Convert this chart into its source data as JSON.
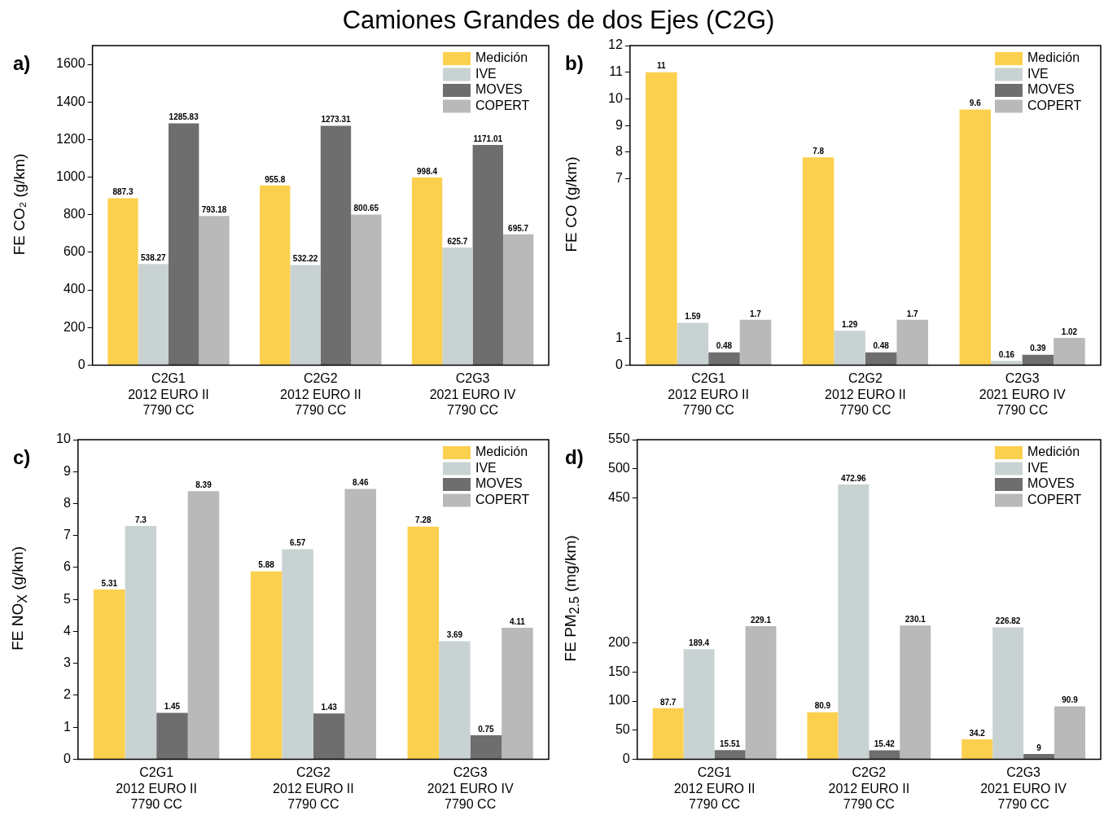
{
  "chart_data": [
    {
      "type": "bar",
      "title": "Camiones Grandes de dos Ejes (C2G)",
      "annotations": [
        "a)"
      ],
      "ylabel": "FE CO₂ (g/km)",
      "categories": [
        "C2G1\n2012 EURO II\n7790 CC",
        "C2G2\n2012 EURO II\n7790 CC",
        "C2G3\n2021 EURO IV\n7790 CC"
      ],
      "series": [
        {
          "name": "Medición",
          "color": "#fcd04f",
          "values": [
            887.3,
            955.8,
            998.4
          ]
        },
        {
          "name": "IVE",
          "color": "#c9d2d2",
          "values": [
            538.27,
            532.22,
            625.7
          ]
        },
        {
          "name": "MOVES",
          "color": "#6e6e6e",
          "values": [
            1285.83,
            1273.31,
            1171.01
          ]
        },
        {
          "name": "COPERT",
          "color": "#b9b9b9",
          "values": [
            793.18,
            800.65,
            695.7
          ]
        }
      ],
      "ylim": [
        0,
        1700
      ],
      "yticks": [
        0,
        200,
        400,
        600,
        800,
        1000,
        1200,
        1400,
        1600
      ],
      "data_labels": true,
      "legend": "top right",
      "grid": false
    },
    {
      "type": "bar",
      "annotations": [
        "b)"
      ],
      "ylabel": "FE CO (g/km)",
      "categories": [
        "C2G1\n2012 EURO II\n7790 CC",
        "C2G2\n2012 EURO II\n7790 CC",
        "C2G3\n2021 EURO IV\n7790 CC"
      ],
      "series": [
        {
          "name": "Medición",
          "color": "#fcd04f",
          "values": [
            11,
            7.8,
            9.6
          ]
        },
        {
          "name": "IVE",
          "color": "#c9d2d2",
          "values": [
            1.59,
            1.29,
            0.16
          ]
        },
        {
          "name": "MOVES",
          "color": "#6e6e6e",
          "values": [
            0.48,
            0.48,
            0.39
          ]
        },
        {
          "name": "COPERT",
          "color": "#b9b9b9",
          "values": [
            1.7,
            1.7,
            1.02
          ]
        }
      ],
      "ylim": [
        0,
        12
      ],
      "yticks": [
        0,
        1,
        7,
        8,
        9,
        10,
        11,
        12
      ],
      "data_labels": true,
      "legend": "top right",
      "grid": false
    },
    {
      "type": "bar",
      "annotations": [
        "c)"
      ],
      "ylabel": "FE NO$_{X}$ (g/km)",
      "categories": [
        "C2G1\n2012 EURO II\n7790 CC",
        "C2G2\n2012 EURO II\n7790 CC",
        "C2G3\n2021 EURO IV\n7790 CC"
      ],
      "series": [
        {
          "name": "Medición",
          "color": "#fcd04f",
          "values": [
            5.31,
            5.88,
            7.28
          ]
        },
        {
          "name": "IVE",
          "color": "#c9d2d2",
          "values": [
            7.3,
            6.57,
            3.69
          ]
        },
        {
          "name": "MOVES",
          "color": "#6e6e6e",
          "values": [
            1.45,
            1.43,
            0.75
          ]
        },
        {
          "name": "COPERT",
          "color": "#b9b9b9",
          "values": [
            8.39,
            8.46,
            4.11
          ]
        }
      ],
      "ylim": [
        0,
        10
      ],
      "yticks": [
        0,
        1,
        2,
        3,
        4,
        5,
        6,
        7,
        8,
        9,
        10
      ],
      "data_labels": true,
      "legend": "top right",
      "grid": false
    },
    {
      "type": "bar",
      "annotations": [
        "d)"
      ],
      "ylabel": "FE PM$_{2.5}$ (mg/km)",
      "categories": [
        "C2G1\n2012 EURO II\n7790 CC",
        "C2G2\n2012 EURO II\n7790 CC",
        "C2G3\n2021 EURO IV\n7790 CC"
      ],
      "series": [
        {
          "name": "Medición",
          "color": "#fcd04f",
          "values": [
            87.7,
            80.9,
            34.2
          ]
        },
        {
          "name": "IVE",
          "color": "#c9d2d2",
          "values": [
            189.4,
            472.96,
            226.82
          ]
        },
        {
          "name": "MOVES",
          "color": "#6e6e6e",
          "values": [
            15.51,
            15.42,
            9
          ]
        },
        {
          "name": "COPERT",
          "color": "#b9b9b9",
          "values": [
            229.1,
            230.1,
            90.9
          ]
        }
      ],
      "ylim": [
        0,
        550
      ],
      "yticks": [
        0,
        50,
        100,
        150,
        200,
        450,
        500,
        550
      ],
      "data_labels": true,
      "legend": "top right",
      "grid": false
    }
  ]
}
